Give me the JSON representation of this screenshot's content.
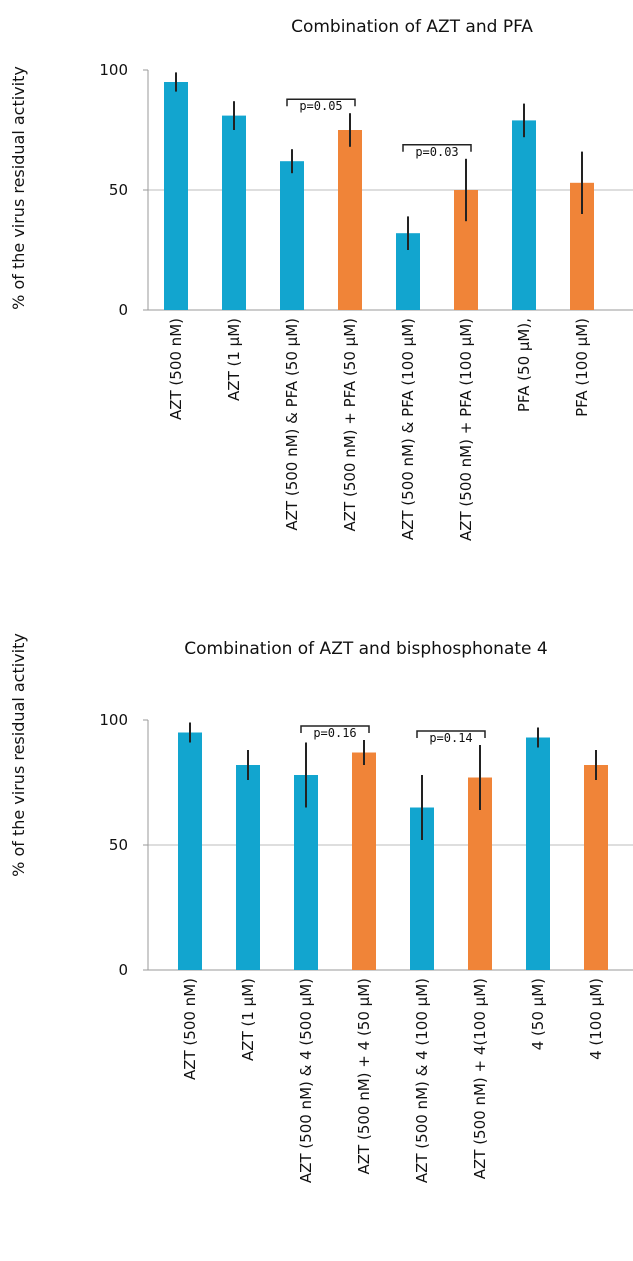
{
  "colors": {
    "blue": "#12a5cf",
    "orange": "#f08438",
    "error": "#222222",
    "grid": "#bdbdbd"
  },
  "chart_data": [
    {
      "type": "bar",
      "title": "Combination of AZT and PFA",
      "ylabel": "% of the virus residual activity",
      "ylim": [
        0,
        100
      ],
      "yticks": [
        "0",
        "50",
        "100"
      ],
      "grid": true,
      "categories": [
        "AZT (500 nM)",
        "AZT (1 μM)",
        "AZT (500 nM) & PFA (50 μM)",
        "AZT (500 nM) + PFA (50 μM)",
        "AZT (500 nM) & PFA (100 μM)",
        "AZT (500 nM) + PFA (100 μM)",
        "PFA (50 μM),",
        "PFA (100 μM)"
      ],
      "values": [
        95,
        81,
        62,
        75,
        32,
        50,
        79,
        53
      ],
      "errors": [
        4,
        6,
        5,
        7,
        7,
        13,
        7,
        13
      ],
      "bar_colors": [
        "blue",
        "blue",
        "blue",
        "orange",
        "blue",
        "orange",
        "blue",
        "orange"
      ],
      "annotations": [
        {
          "text": "p=0.05",
          "from": 2,
          "to": 3
        },
        {
          "text": "p=0.03",
          "from": 4,
          "to": 5
        }
      ]
    },
    {
      "type": "bar",
      "title": "Combination of AZT and bisphosphonate 4",
      "ylabel": "% of the virus residual activity",
      "ylim": [
        0,
        100
      ],
      "yticks": [
        "0",
        "50",
        "100"
      ],
      "grid": true,
      "categories": [
        "AZT (500 nM)",
        "AZT (1 μM)",
        "AZT (500 nM) & 4 (500 μM)",
        "AZT (500 nM) + 4 (50 μM)",
        "AZT (500 nM) & 4 (100 μM)",
        "AZT (500 nM) + 4(100 μM)",
        "4 (50 μM)",
        "4 (100 μM)"
      ],
      "values": [
        95,
        82,
        78,
        87,
        65,
        77,
        93,
        82
      ],
      "errors": [
        4,
        6,
        13,
        5,
        13,
        13,
        4,
        6
      ],
      "bar_colors": [
        "blue",
        "blue",
        "blue",
        "orange",
        "blue",
        "orange",
        "blue",
        "orange"
      ],
      "annotations": [
        {
          "text": "p=0.16",
          "from": 2,
          "to": 3
        },
        {
          "text": "p=0.14",
          "from": 4,
          "to": 5
        }
      ]
    }
  ]
}
